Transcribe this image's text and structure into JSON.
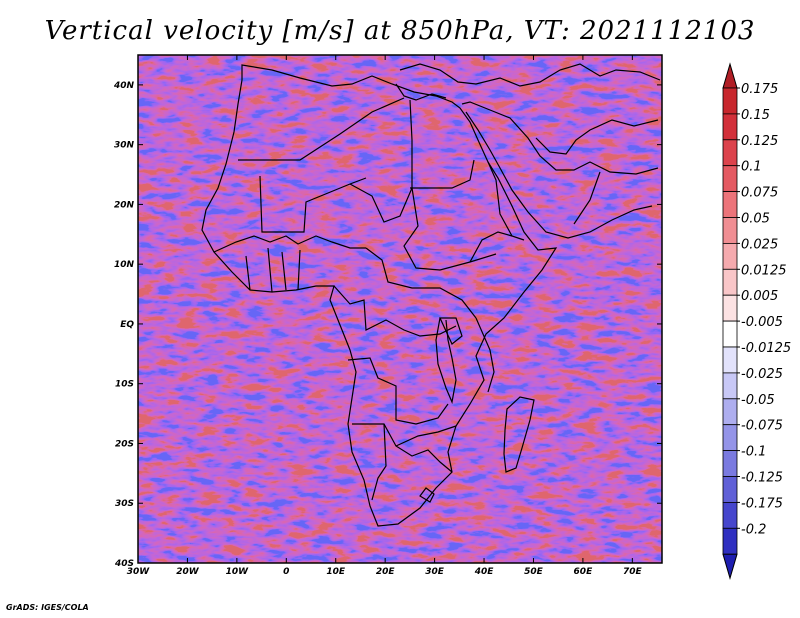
{
  "title": "Vertical velocity [m/s] at 850hPa, VT: 2021112103",
  "footer": "GrADS: IGES/COLA",
  "map": {
    "lon_range": [
      -30,
      76
    ],
    "lat_range": [
      -40,
      45
    ],
    "lon_ticks": [
      {
        "value": -30,
        "label": "30W"
      },
      {
        "value": -20,
        "label": "20W"
      },
      {
        "value": -10,
        "label": "10W"
      },
      {
        "value": 0,
        "label": "0"
      },
      {
        "value": 10,
        "label": "10E"
      },
      {
        "value": 20,
        "label": "20E"
      },
      {
        "value": 30,
        "label": "30E"
      },
      {
        "value": 40,
        "label": "40E"
      },
      {
        "value": 50,
        "label": "50E"
      },
      {
        "value": 60,
        "label": "60E"
      },
      {
        "value": 70,
        "label": "70E"
      }
    ],
    "lat_ticks": [
      {
        "value": 40,
        "label": "40N"
      },
      {
        "value": 30,
        "label": "30N"
      },
      {
        "value": 20,
        "label": "20N"
      },
      {
        "value": 10,
        "label": "10N"
      },
      {
        "value": 0,
        "label": "EQ"
      },
      {
        "value": -10,
        "label": "10S"
      },
      {
        "value": -20,
        "label": "20S"
      },
      {
        "value": -30,
        "label": "30S"
      },
      {
        "value": -40,
        "label": "40S"
      }
    ]
  },
  "colorbar": {
    "levels": [
      {
        "label": "0.175",
        "color": "#c8272d"
      },
      {
        "label": "0.15",
        "color": "#d2303a"
      },
      {
        "label": "0.125",
        "color": "#dc434c"
      },
      {
        "label": "0.1",
        "color": "#e45a62"
      },
      {
        "label": "0.075",
        "color": "#ec747a"
      },
      {
        "label": "0.05",
        "color": "#f08e93"
      },
      {
        "label": "0.025",
        "color": "#f5aaae"
      },
      {
        "label": "0.0125",
        "color": "#f9c6c8"
      },
      {
        "label": "0.005",
        "color": "#fce2e3"
      },
      {
        "label": "-0.005",
        "color": "#ffffff"
      },
      {
        "label": "-0.0125",
        "color": "#e2e2fb"
      },
      {
        "label": "-0.025",
        "color": "#c8c8f6"
      },
      {
        "label": "-0.05",
        "color": "#aeaeef"
      },
      {
        "label": "-0.075",
        "color": "#9494e8"
      },
      {
        "label": "-0.1",
        "color": "#7a7ae0"
      },
      {
        "label": "-0.125",
        "color": "#6060d7"
      },
      {
        "label": "-0.175",
        "color": "#4646cd"
      },
      {
        "label": "-0.2",
        "color": "#2f2fc0"
      }
    ],
    "top_tip_color": "#b01e25",
    "bottom_tip_color": "#1e1eb0"
  }
}
